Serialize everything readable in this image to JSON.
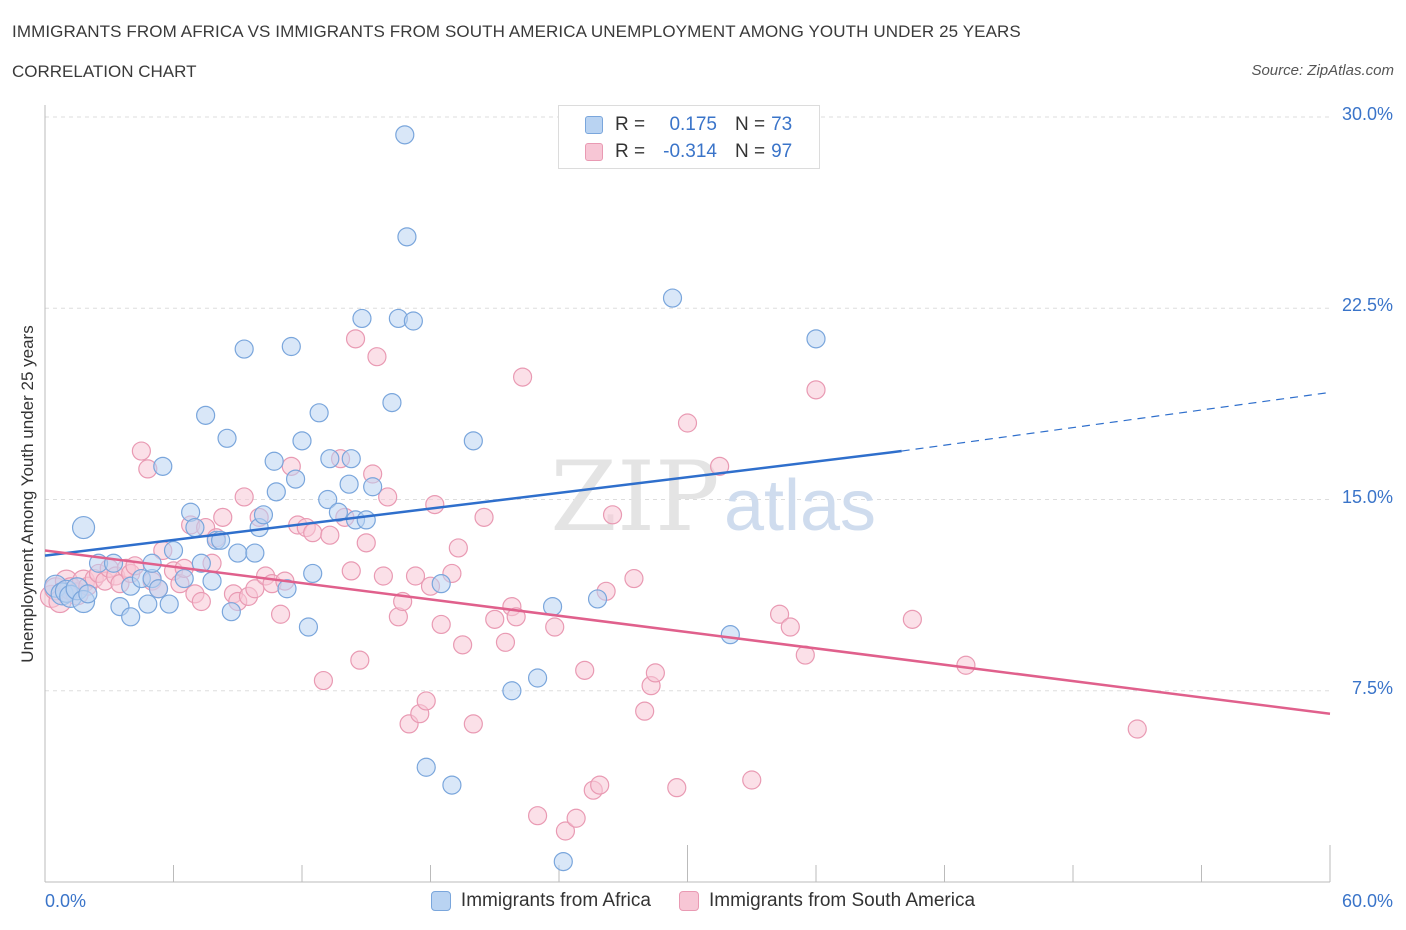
{
  "header": {
    "title": "IMMIGRANTS FROM AFRICA VS IMMIGRANTS FROM SOUTH AMERICA UNEMPLOYMENT AMONG YOUTH UNDER 25 YEARS",
    "subtitle": "CORRELATION CHART",
    "source": "Source: ZipAtlas.com"
  },
  "legend": {
    "r_label": "R =",
    "n_label": "N =",
    "africa": {
      "r": "0.175",
      "n": "73"
    },
    "south_america": {
      "r": "-0.314",
      "n": "97"
    }
  },
  "colors": {
    "africa_fill": "#b9d3f2",
    "africa_stroke": "#7aa6dc",
    "africa_line": "#2f6fcc",
    "sa_fill": "#f7c6d5",
    "sa_stroke": "#e99ab3",
    "sa_line": "#e0608c",
    "accent_text": "#3a74c9",
    "grid": "#dddddd"
  },
  "watermark": {
    "zip": "ZIP",
    "atlas": "atlas"
  },
  "chart_data": {
    "type": "scatter",
    "title": "IMMIGRANTS FROM AFRICA VS IMMIGRANTS FROM SOUTH AMERICA UNEMPLOYMENT AMONG YOUTH UNDER 25 YEARS",
    "xlabel": "",
    "ylabel": "Unemployment Among Youth under 25 years",
    "xlim": [
      0,
      60
    ],
    "ylim": [
      0,
      30
    ],
    "x_tick_labels": [
      "0.0%",
      "60.0%"
    ],
    "y_ticks": [
      7.5,
      15.0,
      22.5,
      30.0
    ],
    "y_tick_labels": [
      "7.5%",
      "15.0%",
      "22.5%",
      "30.0%"
    ],
    "grid": true,
    "legend_position": "top-center",
    "series": [
      {
        "name": "Immigrants from Africa",
        "trend": {
          "x": [
            0,
            40,
            60
          ],
          "y": [
            12.8,
            16.9,
            19.2
          ],
          "solid_until_x": 40
        },
        "points": [
          [
            0.5,
            11.6
          ],
          [
            0.8,
            11.3
          ],
          [
            1.0,
            11.4
          ],
          [
            1.2,
            11.2
          ],
          [
            1.5,
            11.5
          ],
          [
            1.8,
            11.0
          ],
          [
            1.8,
            13.9
          ],
          [
            2.0,
            11.3
          ],
          [
            2.5,
            12.5
          ],
          [
            3.2,
            12.5
          ],
          [
            3.5,
            10.8
          ],
          [
            4.0,
            11.6
          ],
          [
            4.0,
            10.4
          ],
          [
            4.5,
            11.9
          ],
          [
            4.8,
            10.9
          ],
          [
            5.0,
            11.9
          ],
          [
            5.0,
            12.5
          ],
          [
            5.3,
            11.5
          ],
          [
            5.5,
            16.3
          ],
          [
            5.8,
            10.9
          ],
          [
            6.0,
            13.0
          ],
          [
            6.5,
            11.9
          ],
          [
            6.8,
            14.5
          ],
          [
            7.0,
            13.9
          ],
          [
            7.3,
            12.5
          ],
          [
            7.5,
            18.3
          ],
          [
            7.8,
            11.8
          ],
          [
            8.0,
            13.4
          ],
          [
            8.2,
            13.4
          ],
          [
            8.5,
            17.4
          ],
          [
            8.7,
            10.6
          ],
          [
            9.0,
            12.9
          ],
          [
            9.3,
            20.9
          ],
          [
            9.8,
            12.9
          ],
          [
            10.0,
            13.9
          ],
          [
            10.2,
            14.4
          ],
          [
            10.7,
            16.5
          ],
          [
            10.8,
            15.3
          ],
          [
            11.3,
            11.5
          ],
          [
            11.5,
            21.0
          ],
          [
            11.7,
            15.8
          ],
          [
            12.0,
            17.3
          ],
          [
            12.3,
            10.0
          ],
          [
            12.5,
            12.1
          ],
          [
            12.8,
            18.4
          ],
          [
            13.2,
            15.0
          ],
          [
            13.3,
            16.6
          ],
          [
            13.7,
            14.5
          ],
          [
            14.2,
            15.6
          ],
          [
            14.3,
            16.6
          ],
          [
            14.5,
            14.2
          ],
          [
            14.8,
            22.1
          ],
          [
            15.0,
            14.2
          ],
          [
            15.3,
            15.5
          ],
          [
            16.2,
            18.8
          ],
          [
            16.5,
            22.1
          ],
          [
            16.8,
            29.3
          ],
          [
            16.9,
            25.3
          ],
          [
            17.2,
            22.0
          ],
          [
            17.8,
            4.5
          ],
          [
            18.5,
            11.7
          ],
          [
            19.0,
            3.8
          ],
          [
            20.0,
            17.3
          ],
          [
            21.8,
            7.5
          ],
          [
            23.0,
            8.0
          ],
          [
            23.7,
            10.8
          ],
          [
            24.2,
            0.8
          ],
          [
            25.8,
            11.1
          ],
          [
            29.3,
            22.9
          ],
          [
            32.0,
            9.7
          ],
          [
            36.0,
            21.3
          ]
        ]
      },
      {
        "name": "Immigrants from South America",
        "trend": {
          "x": [
            0,
            60
          ],
          "y": [
            13.0,
            6.6
          ]
        },
        "points": [
          [
            0.3,
            11.2
          ],
          [
            0.5,
            11.5
          ],
          [
            0.7,
            11.0
          ],
          [
            1.0,
            11.8
          ],
          [
            1.2,
            11.5
          ],
          [
            1.5,
            11.3
          ],
          [
            1.8,
            11.8
          ],
          [
            2.0,
            11.6
          ],
          [
            2.3,
            11.9
          ],
          [
            2.5,
            12.1
          ],
          [
            2.8,
            11.8
          ],
          [
            3.0,
            12.3
          ],
          [
            3.3,
            12.0
          ],
          [
            3.5,
            11.7
          ],
          [
            3.8,
            12.3
          ],
          [
            4.0,
            12.1
          ],
          [
            4.2,
            12.4
          ],
          [
            4.5,
            16.9
          ],
          [
            4.8,
            16.2
          ],
          [
            5.0,
            11.8
          ],
          [
            5.3,
            11.5
          ],
          [
            5.5,
            13.0
          ],
          [
            6.0,
            12.2
          ],
          [
            6.3,
            11.7
          ],
          [
            6.5,
            12.3
          ],
          [
            6.8,
            14.0
          ],
          [
            7.0,
            11.3
          ],
          [
            7.3,
            11.0
          ],
          [
            7.5,
            13.9
          ],
          [
            7.8,
            12.5
          ],
          [
            8.0,
            13.5
          ],
          [
            8.3,
            14.3
          ],
          [
            8.8,
            11.3
          ],
          [
            9.0,
            11.0
          ],
          [
            9.3,
            15.1
          ],
          [
            9.5,
            11.2
          ],
          [
            9.8,
            11.5
          ],
          [
            10.0,
            14.3
          ],
          [
            10.3,
            12.0
          ],
          [
            10.6,
            11.7
          ],
          [
            11.0,
            10.5
          ],
          [
            11.2,
            11.8
          ],
          [
            11.5,
            16.3
          ],
          [
            11.8,
            14.0
          ],
          [
            12.2,
            13.9
          ],
          [
            12.5,
            13.7
          ],
          [
            13.0,
            7.9
          ],
          [
            13.3,
            13.6
          ],
          [
            13.8,
            16.6
          ],
          [
            14.0,
            14.3
          ],
          [
            14.3,
            12.2
          ],
          [
            14.5,
            21.3
          ],
          [
            14.7,
            8.7
          ],
          [
            15.0,
            13.3
          ],
          [
            15.3,
            16.0
          ],
          [
            15.5,
            20.6
          ],
          [
            15.8,
            12.0
          ],
          [
            16.0,
            15.1
          ],
          [
            16.5,
            10.4
          ],
          [
            16.7,
            11.0
          ],
          [
            17.0,
            6.2
          ],
          [
            17.3,
            12.0
          ],
          [
            17.5,
            6.6
          ],
          [
            17.8,
            7.1
          ],
          [
            18.0,
            11.6
          ],
          [
            18.2,
            14.8
          ],
          [
            18.5,
            10.1
          ],
          [
            19.0,
            12.1
          ],
          [
            19.3,
            13.1
          ],
          [
            19.5,
            9.3
          ],
          [
            20.0,
            6.2
          ],
          [
            20.5,
            14.3
          ],
          [
            21.0,
            10.3
          ],
          [
            21.5,
            9.4
          ],
          [
            21.8,
            10.8
          ],
          [
            22.0,
            10.4
          ],
          [
            22.3,
            19.8
          ],
          [
            23.0,
            2.6
          ],
          [
            23.8,
            10.0
          ],
          [
            24.3,
            2.0
          ],
          [
            24.8,
            2.5
          ],
          [
            25.2,
            8.3
          ],
          [
            25.6,
            3.6
          ],
          [
            25.9,
            3.8
          ],
          [
            26.2,
            11.4
          ],
          [
            26.5,
            14.4
          ],
          [
            27.5,
            11.9
          ],
          [
            28.0,
            6.7
          ],
          [
            28.3,
            7.7
          ],
          [
            28.5,
            8.2
          ],
          [
            29.5,
            3.7
          ],
          [
            30.0,
            18.0
          ],
          [
            31.5,
            16.3
          ],
          [
            33.0,
            4.0
          ],
          [
            34.3,
            10.5
          ],
          [
            34.8,
            10.0
          ],
          [
            35.5,
            8.9
          ],
          [
            36.0,
            19.3
          ],
          [
            40.5,
            10.3
          ],
          [
            43.0,
            8.5
          ],
          [
            51.0,
            6.0
          ]
        ]
      }
    ]
  },
  "bottom_legend": {
    "africa": "Immigrants from Africa",
    "south_america": "Immigrants from South America"
  }
}
